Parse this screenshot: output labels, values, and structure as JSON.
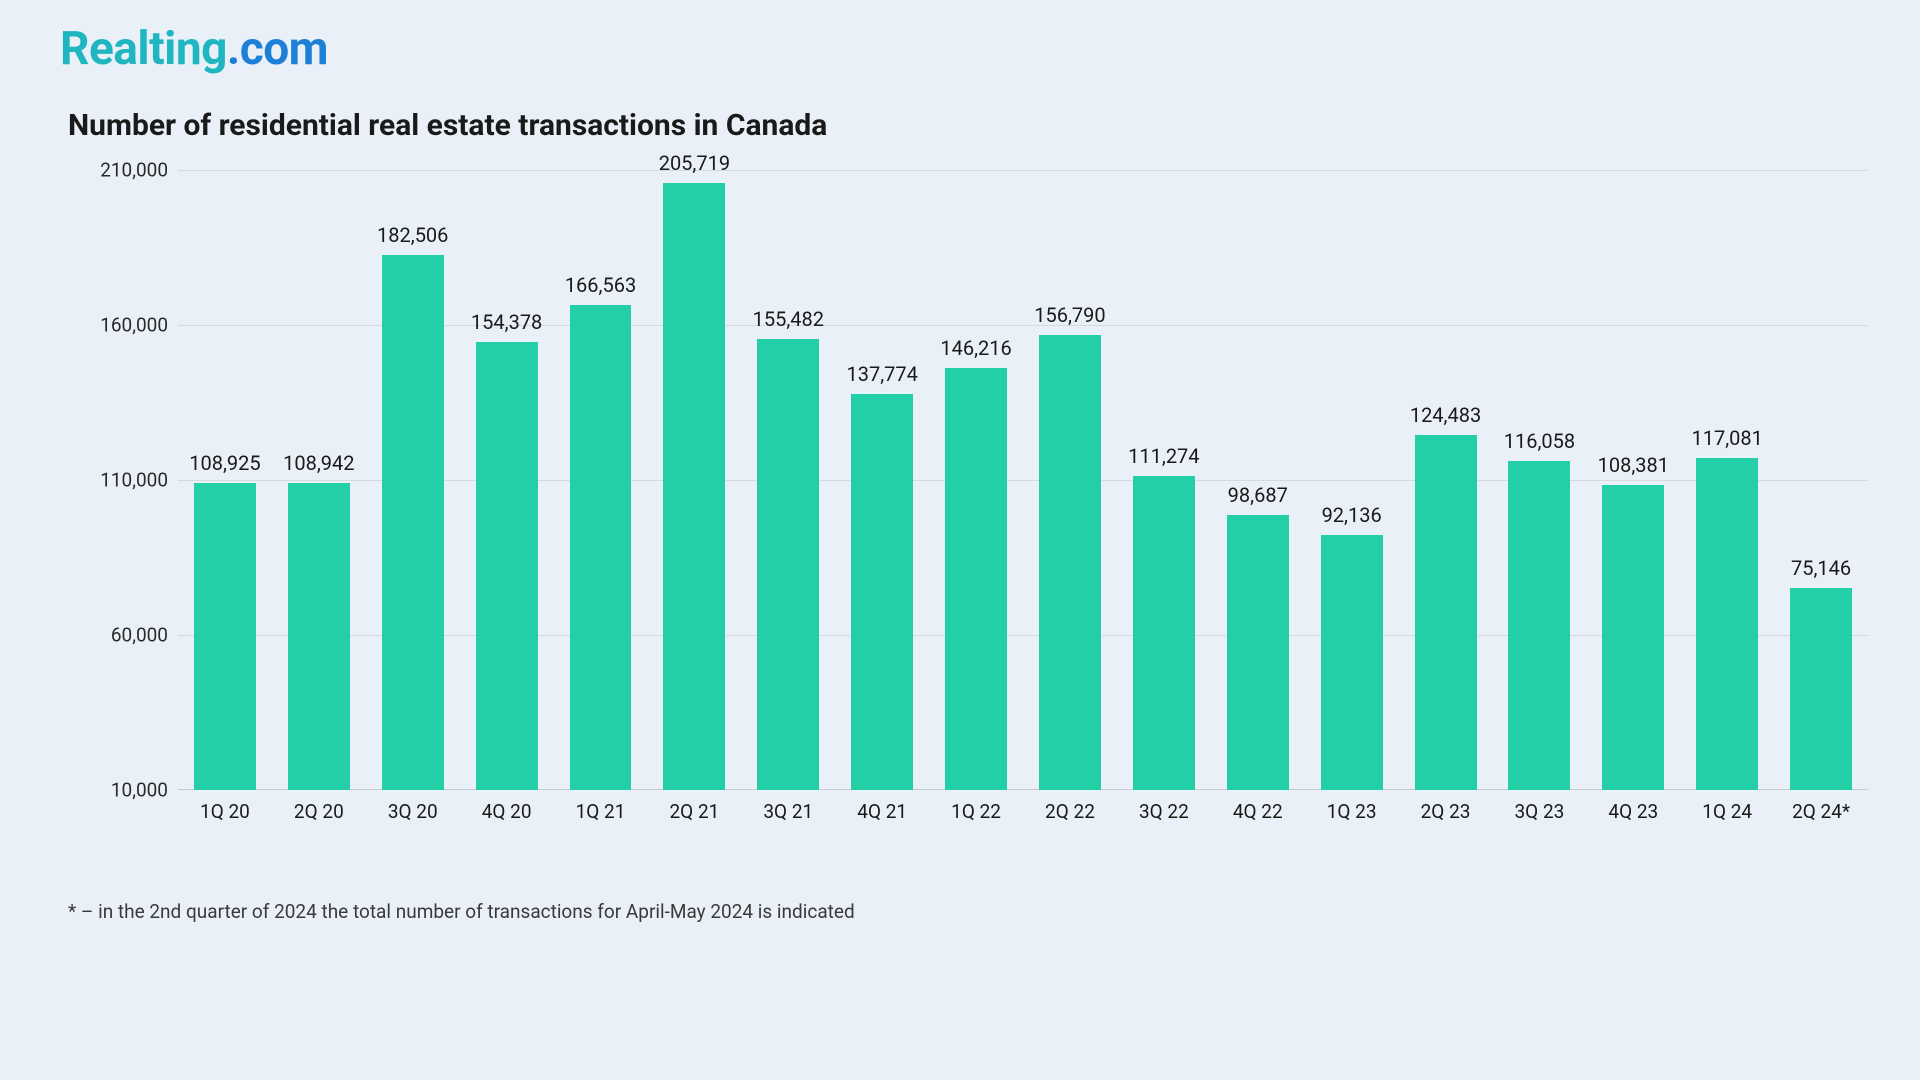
{
  "logo": {
    "text_part1": "Realting",
    "text_part2": ".com",
    "color_part1": "#1fb6c1",
    "color_part2": "#1e7fd6"
  },
  "chart": {
    "type": "bar",
    "title": "Number of residential real estate transactions in Canada",
    "title_fontsize": 30,
    "title_color": "#1a1a1a",
    "background_color": "#eaf0f7",
    "bar_color": "#23cfa6",
    "grid_color": "#d5dae1",
    "axis_color": "#c8ccd2",
    "label_fontsize": 20,
    "tick_fontsize": 19,
    "bar_width_ratio": 0.66,
    "ylim": [
      10000,
      210000
    ],
    "yticks": [
      10000,
      60000,
      110000,
      160000,
      210000
    ],
    "ytick_labels": [
      "10,000",
      "60,000",
      "110,000",
      "160,000",
      "210,000"
    ],
    "categories": [
      "1Q 20",
      "2Q 20",
      "3Q 20",
      "4Q 20",
      "1Q 21",
      "2Q 21",
      "3Q 21",
      "4Q 21",
      "1Q 22",
      "2Q 22",
      "3Q 22",
      "4Q 22",
      "1Q 23",
      "2Q 23",
      "3Q 23",
      "4Q 23",
      "1Q 24",
      "2Q 24*"
    ],
    "values": [
      108925,
      108942,
      182506,
      154378,
      166563,
      205719,
      155482,
      137774,
      146216,
      156790,
      111274,
      98687,
      92136,
      124483,
      116058,
      108381,
      117081,
      75146
    ],
    "value_labels": [
      "108,925",
      "108,942",
      "182,506",
      "154,378",
      "166,563",
      "205,719",
      "155,482",
      "137,774",
      "146,216",
      "156,790",
      "111,274",
      "98,687",
      "92,136",
      "124,483",
      "116,058",
      "108,381",
      "117,081",
      "75,146"
    ]
  },
  "footnote": "* – in the 2nd quarter of 2024 the total number of transactions for April-May 2024 is indicated"
}
